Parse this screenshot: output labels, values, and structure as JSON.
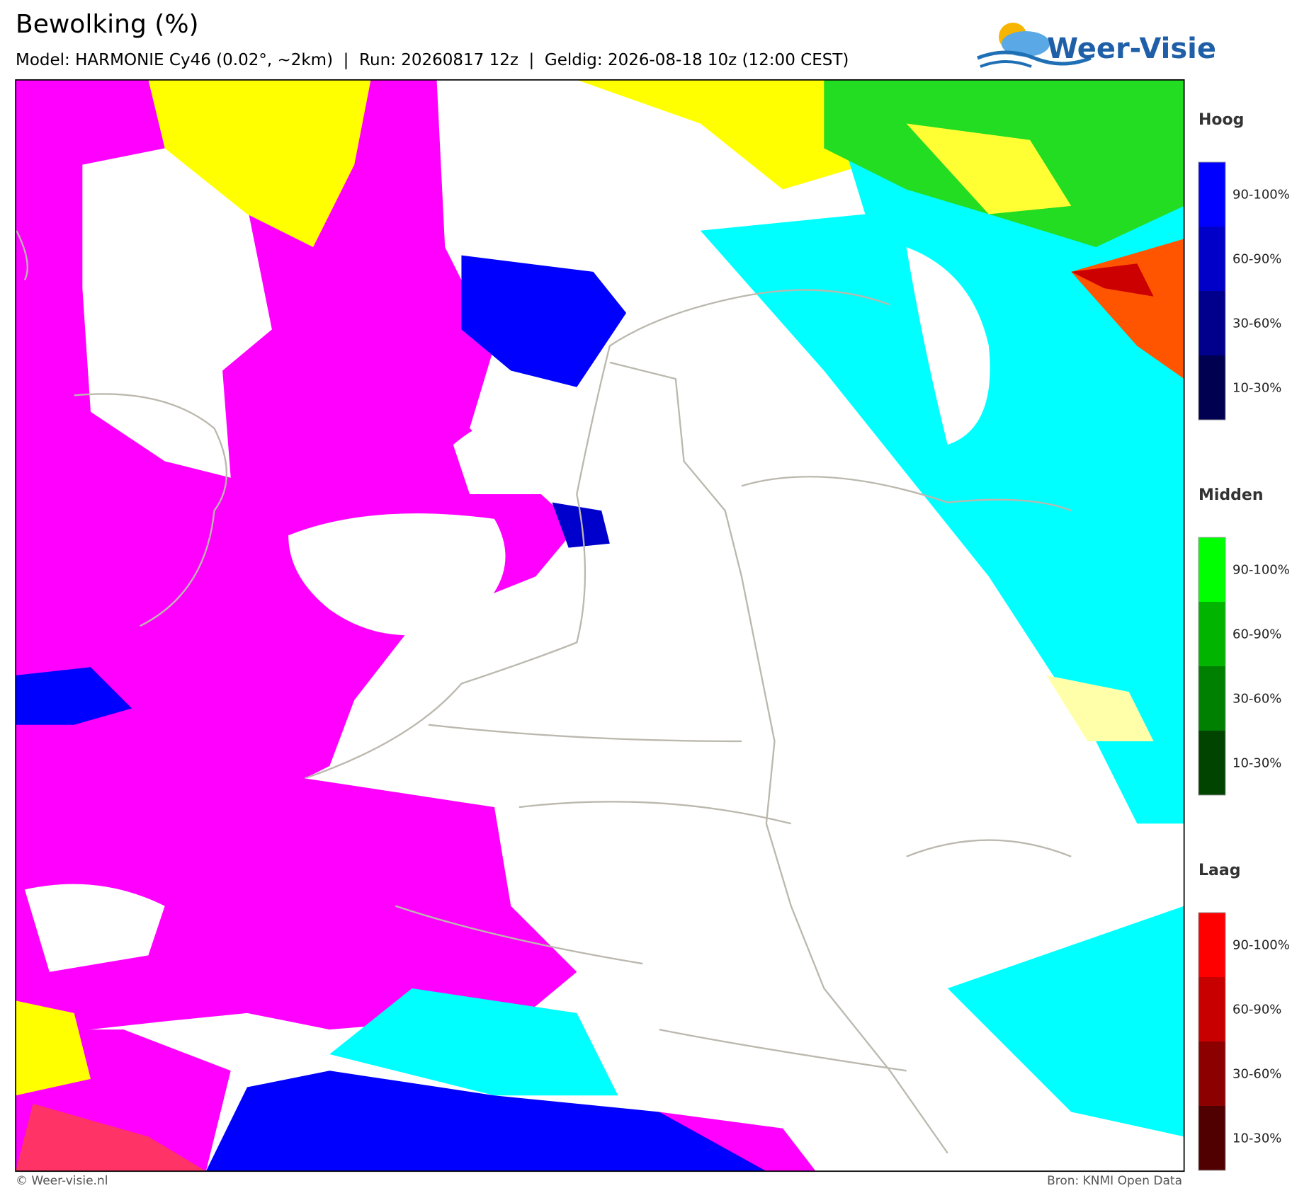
{
  "header": {
    "title": "Bewolking (%)",
    "subtitle": "Model: HARMONIE Cy46 (0.02°, ~2km)  |  Run: 20260817 12z  |  Geldig: 2026-08-18 10z (12:00 CEST)",
    "logo": "Weer-Visie"
  },
  "legend": [
    {
      "name": "Hoog",
      "labels": [
        "90-100%",
        "60-90%",
        "30-60%",
        "10-30%"
      ],
      "colors": [
        "#0000ff",
        "#0000c8",
        "#00008c",
        "#000050"
      ]
    },
    {
      "name": "Midden",
      "labels": [
        "90-100%",
        "60-90%",
        "30-60%",
        "10-30%"
      ],
      "colors": [
        "#00ff00",
        "#00b400",
        "#008000",
        "#004400"
      ]
    },
    {
      "name": "Laag",
      "labels": [
        "90-100%",
        "60-90%",
        "30-60%",
        "10-30%"
      ],
      "colors": [
        "#ff0000",
        "#c80000",
        "#8c0000",
        "#500000"
      ]
    }
  ],
  "footer": {
    "left": "© Weer-visie.nl",
    "right": "Bron: KNMI Open Data"
  }
}
